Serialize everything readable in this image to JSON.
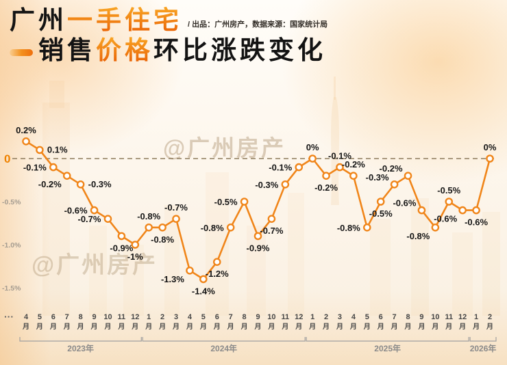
{
  "title": {
    "line1_black": "广州",
    "line1_accent": "一手住宅",
    "line2_black1": "销售",
    "line2_accent": "价格",
    "line2_black2": "环比涨跌变化",
    "subtitle": "/ 出品：广州房产，数据来源：国家统计局"
  },
  "watermark": "@广州房产",
  "colors": {
    "accent_line": "#f08519",
    "title_accent": "#ec6a00",
    "zero_dash": "#8d7b5c",
    "data_label": "#151515",
    "axis_text": "#8a8a8a"
  },
  "chart_data": {
    "type": "line",
    "title": "广州一手住宅销售价格环比涨跌变化",
    "unit": "%",
    "ylim": [
      -1.55,
      0.35
    ],
    "grid": "off",
    "zero_line": "dashed",
    "ellipsis_prefix": "···",
    "month_suffix": "月",
    "yticks": [
      {
        "label": "0",
        "value": 0
      },
      {
        "label": "-0.5%",
        "value": -0.5
      },
      {
        "label": "-1.0%",
        "value": -1.0
      },
      {
        "label": "-1.5%",
        "value": -1.5
      }
    ],
    "year_groups": [
      {
        "label": "2023年",
        "count": 9
      },
      {
        "label": "2024年",
        "count": 12
      },
      {
        "label": "2025年",
        "count": 12
      },
      {
        "label": "2026年",
        "count": 2
      }
    ],
    "points": [
      {
        "month": "4",
        "value": 0.2,
        "label": "0.2%"
      },
      {
        "month": "5",
        "value": 0.1,
        "label": "0.1%"
      },
      {
        "month": "6",
        "value": -0.1,
        "label": "-0.1%"
      },
      {
        "month": "7",
        "value": -0.2,
        "label": "-0.2%"
      },
      {
        "month": "8",
        "value": -0.3,
        "label": "-0.3%"
      },
      {
        "month": "9",
        "value": -0.6,
        "label": "-0.6%"
      },
      {
        "month": "10",
        "value": -0.7,
        "label": "-0.7%"
      },
      {
        "month": "11",
        "value": -0.9,
        "label": "-0.9%"
      },
      {
        "month": "12",
        "value": -1,
        "label": "-1%"
      },
      {
        "month": "1",
        "value": -0.8,
        "label": "-0.8%"
      },
      {
        "month": "2",
        "value": -0.8,
        "label": "-0.8%"
      },
      {
        "month": "3",
        "value": -0.7,
        "label": "-0.7%"
      },
      {
        "month": "4",
        "value": -1.3,
        "label": "-1.3%"
      },
      {
        "month": "5",
        "value": -1.4,
        "label": "-1.4%"
      },
      {
        "month": "6",
        "value": -1.2,
        "label": "-1.2%"
      },
      {
        "month": "7",
        "value": -0.8,
        "label": "-0.8%"
      },
      {
        "month": "8",
        "value": -0.5,
        "label": "-0.5%"
      },
      {
        "month": "9",
        "value": -0.9,
        "label": "-0.9%"
      },
      {
        "month": "10",
        "value": -0.7,
        "label": "-0.7%"
      },
      {
        "month": "11",
        "value": -0.3,
        "label": "-0.3%"
      },
      {
        "month": "12",
        "value": -0.1,
        "label": "-0.1%"
      },
      {
        "month": "1",
        "value": 0,
        "label": "0%"
      },
      {
        "month": "2",
        "value": -0.2,
        "label": "-0.2%"
      },
      {
        "month": "3",
        "value": -0.1,
        "label": "-0.1%"
      },
      {
        "month": "4",
        "value": -0.2,
        "label": "-0.2%"
      },
      {
        "month": "5",
        "value": -0.8,
        "label": "-0.8%"
      },
      {
        "month": "6",
        "value": -0.5,
        "label": "-0.5%"
      },
      {
        "month": "7",
        "value": -0.3,
        "label": "-0.3%"
      },
      {
        "month": "8",
        "value": -0.2,
        "label": "-0.2%"
      },
      {
        "month": "9",
        "value": -0.6,
        "label": "-0.6%"
      },
      {
        "month": "10",
        "value": -0.8,
        "label": "-0.8%"
      },
      {
        "month": "11",
        "value": -0.5,
        "label": "-0.5%"
      },
      {
        "month": "12",
        "value": -0.6,
        "label": "-0.6%"
      },
      {
        "month": "1",
        "value": -0.6,
        "label": "-0.6%"
      },
      {
        "month": "2",
        "value": 0,
        "label": "0%"
      }
    ]
  }
}
